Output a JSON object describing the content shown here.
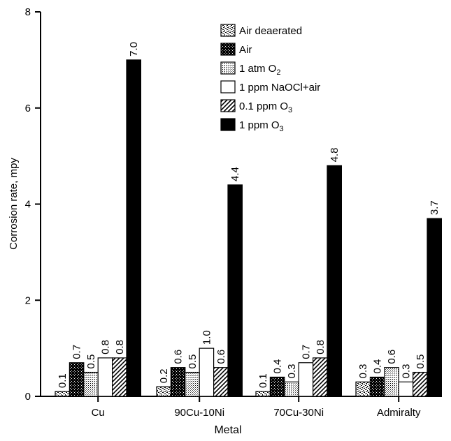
{
  "chart_data": {
    "type": "bar",
    "title": "",
    "xlabel": "Metal",
    "ylabel": "Corrosion rate, mpy",
    "ylim": [
      0,
      8
    ],
    "yticks": [
      "0",
      "2",
      "4",
      "6",
      "8"
    ],
    "grid": false,
    "legend_position": "top-right",
    "categories": [
      "Cu",
      "90Cu-10Ni",
      "70Cu-30Ni",
      "Admiralty"
    ],
    "series": [
      {
        "name": "Air deaerated",
        "pattern": "speckled",
        "values": [
          0.1,
          0.2,
          0.1,
          0.3
        ],
        "labels": [
          "0.1",
          "0.2",
          "0.1",
          "0.3"
        ]
      },
      {
        "name": "Air",
        "pattern": "dense-checker",
        "values": [
          0.7,
          0.6,
          0.4,
          0.4
        ],
        "labels": [
          "0.7",
          "0.6",
          "0.4",
          "0.4"
        ]
      },
      {
        "name": "1 atm O2",
        "name_main": "1 atm O",
        "name_sub": "2",
        "pattern": "light-dots",
        "values": [
          0.5,
          0.5,
          0.3,
          0.6
        ],
        "labels": [
          "0.5",
          "0.5",
          "0.3",
          "0.6"
        ]
      },
      {
        "name": "1 ppm NaOCl+air",
        "pattern": "white",
        "values": [
          0.8,
          1.0,
          0.7,
          0.3
        ],
        "labels": [
          "0.8",
          "1.0",
          "0.7",
          "0.3"
        ]
      },
      {
        "name": "0.1 ppm O3",
        "name_main": "0.1 ppm O",
        "name_sub": "3",
        "pattern": "diagonal",
        "values": [
          0.8,
          0.6,
          0.8,
          0.5
        ],
        "labels": [
          "0.8",
          "0.6",
          "0.8",
          "0.5"
        ]
      },
      {
        "name": "1 ppm O3",
        "name_main": "1 ppm O",
        "name_sub": "3",
        "pattern": "black",
        "values": [
          7.0,
          4.4,
          4.8,
          3.7
        ],
        "labels": [
          "7.0",
          "4.4",
          "4.8",
          "3.7"
        ]
      }
    ]
  }
}
